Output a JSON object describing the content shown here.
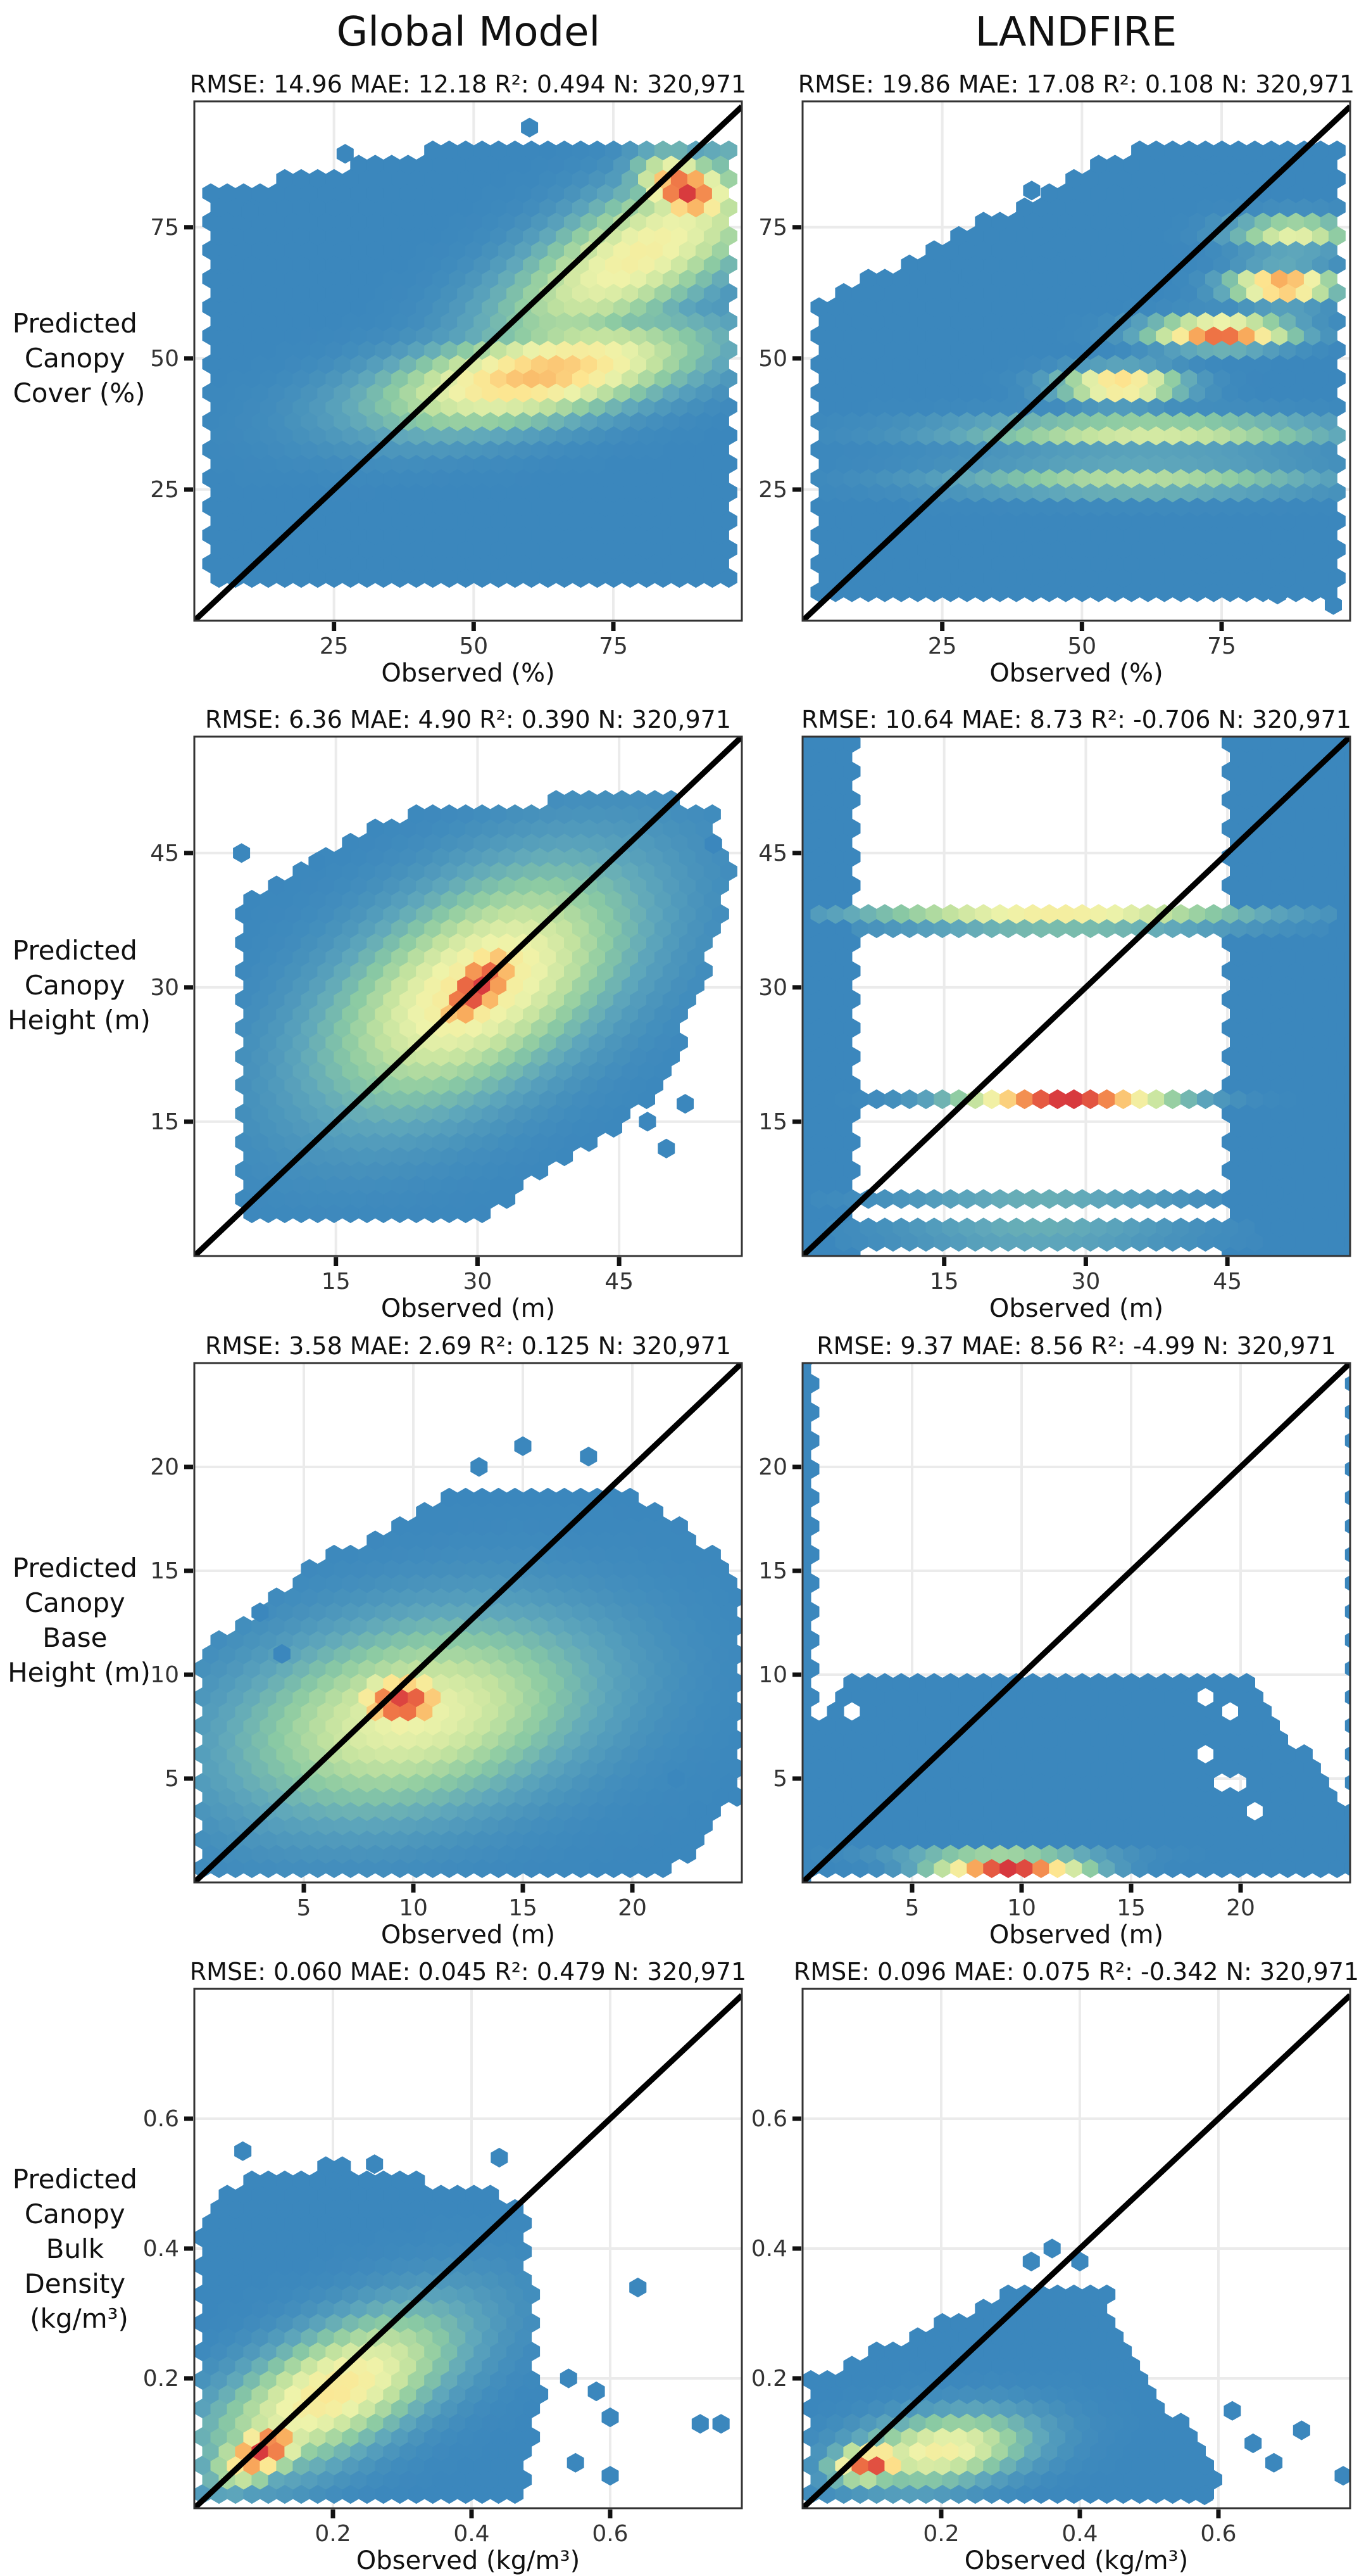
{
  "column_titles": [
    "Global Model",
    "LANDFIRE"
  ],
  "row_ylabels": [
    [
      "Predicted",
      "Canopy",
      "Cover (%)"
    ],
    [
      "Predicted",
      "Canopy",
      "Height (m)"
    ],
    [
      "Predicted",
      "Canopy",
      "Base",
      "Height (m)"
    ],
    [
      "Predicted",
      "Canopy",
      "Bulk",
      "Density",
      "(kg/m³)"
    ]
  ],
  "colors": {
    "low": "#3b87bd",
    "ramp": [
      "#3b87bd",
      "#5fa7bb",
      "#8bcaa3",
      "#c2e29f",
      "#eef3aa",
      "#fde590",
      "#f9ae5e",
      "#ee7245",
      "#d7373e"
    ],
    "grid": "#ebebeb",
    "identity_line": "#000000"
  },
  "chart_data": [
    {
      "type": "hexbin",
      "id": "cover-global",
      "title": "RMSE: 14.96 MAE: 12.18 R²: 0.494 N: 320,971",
      "xlabel": "Observed (%)",
      "ylabel": "Predicted Canopy Cover (%)",
      "xlim": [
        0,
        98
      ],
      "ylim": [
        0,
        99
      ],
      "xticks": [
        25,
        50,
        75
      ],
      "yticks": [
        25,
        50,
        75
      ],
      "xticklabels": [
        "25",
        "50",
        "75"
      ],
      "yticklabels": [
        "25",
        "50",
        "75"
      ],
      "envelope": [
        [
          2,
          6
        ],
        [
          96,
          6
        ],
        [
          96,
          92
        ],
        [
          55,
          92
        ],
        [
          2,
          82
        ]
      ],
      "clusters": [
        {
          "x": 88,
          "y": 82,
          "sx": 5,
          "sy": 4,
          "r": -0.3,
          "w": 1.0
        },
        {
          "x": 62,
          "y": 47,
          "sx": 16,
          "sy": 6,
          "r": 0.55,
          "w": 0.72
        },
        {
          "x": 80,
          "y": 70,
          "sx": 12,
          "sy": 10,
          "r": 0.85,
          "w": 0.55
        }
      ],
      "outliers": [
        [
          27,
          89
        ],
        [
          60,
          94
        ],
        [
          10,
          78
        ]
      ]
    },
    {
      "type": "hexbin",
      "id": "cover-landfire",
      "title": "RMSE: 19.86 MAE: 17.08 R²: 0.108 N: 320,971",
      "xlabel": "Observed (%)",
      "ylabel": "",
      "xlim": [
        0,
        98
      ],
      "ylim": [
        0,
        99
      ],
      "xticks": [
        25,
        50,
        75
      ],
      "yticks": [
        25,
        50,
        75
      ],
      "xticklabels": [
        "25",
        "50",
        "75"
      ],
      "yticklabels": [
        "25",
        "50",
        "75"
      ],
      "envelope": [
        [
          2,
          4
        ],
        [
          96,
          4
        ],
        [
          96,
          92
        ],
        [
          62,
          92
        ],
        [
          2,
          60
        ]
      ],
      "clusters": [
        {
          "x": 75,
          "y": 55,
          "sx": 8,
          "sy": 1.8,
          "r": 0,
          "w": 0.95
        },
        {
          "x": 86,
          "y": 64,
          "sx": 6,
          "sy": 2,
          "r": 0,
          "w": 0.9
        },
        {
          "x": 57,
          "y": 45,
          "sx": 7,
          "sy": 2,
          "r": 0,
          "w": 0.75
        },
        {
          "x": 62,
          "y": 36,
          "sx": 22,
          "sy": 2,
          "r": 0,
          "w": 0.45
        },
        {
          "x": 60,
          "y": 27,
          "sx": 22,
          "sy": 2,
          "r": 0,
          "w": 0.35
        },
        {
          "x": 88,
          "y": 74,
          "sx": 7,
          "sy": 2,
          "r": 0,
          "w": 0.5
        }
      ],
      "outliers": [
        [
          41,
          82
        ],
        [
          30,
          66
        ],
        [
          46,
          72
        ],
        [
          80,
          6
        ],
        [
          85,
          5
        ],
        [
          95,
          3
        ]
      ]
    },
    {
      "type": "hexbin",
      "id": "height-global",
      "title": "RMSE: 6.36 MAE: 4.90 R²: 0.390 N: 320,971",
      "xlabel": "Observed (m)",
      "ylabel": "Predicted Canopy Height (m)",
      "xlim": [
        0,
        58
      ],
      "ylim": [
        0,
        58
      ],
      "xticks": [
        15,
        30,
        45
      ],
      "yticks": [
        15,
        30,
        45
      ],
      "xticklabels": [
        "15",
        "30",
        "45"
      ],
      "yticklabels": [
        "15",
        "30",
        "45"
      ],
      "envelope": [
        [
          5,
          4
        ],
        [
          30,
          4
        ],
        [
          50,
          18
        ],
        [
          57,
          42
        ],
        [
          55,
          50
        ],
        [
          48,
          52
        ],
        [
          20,
          49
        ],
        [
          5,
          40
        ]
      ],
      "clusters": [
        {
          "x": 30,
          "y": 30,
          "sx": 3,
          "sy": 3.5,
          "r": 0.7,
          "w": 1.0
        },
        {
          "x": 30,
          "y": 30,
          "sx": 9,
          "sy": 8,
          "r": 0.55,
          "w": 0.6
        }
      ],
      "outliers": [
        [
          5,
          45
        ],
        [
          13,
          44
        ],
        [
          55,
          46
        ],
        [
          50,
          12
        ],
        [
          52,
          17
        ],
        [
          48,
          15
        ]
      ]
    },
    {
      "type": "hexbin",
      "id": "height-landfire",
      "title": "RMSE: 10.64 MAE: 8.73 R²: -0.706 N: 320,971",
      "xlabel": "Observed (m)",
      "ylabel": "",
      "xlim": [
        0,
        58
      ],
      "ylim": [
        0,
        58
      ],
      "xticks": [
        15,
        30,
        45
      ],
      "yticks": [
        15,
        30,
        45
      ],
      "xticklabels": [
        "15",
        "30",
        "45"
      ],
      "yticklabels": [
        "15",
        "30",
        "45"
      ],
      "bands": [
        {
          "y": 37.8,
          "x0": 1,
          "x1": 57,
          "cx": 27,
          "spread": 13,
          "peak": 0.55
        },
        {
          "y": 36.0,
          "x0": 6,
          "x1": 55,
          "cx": 28,
          "spread": 12,
          "peak": 0.2
        },
        {
          "y": 17.3,
          "x0": 4,
          "x1": 57,
          "cx": 28,
          "spread": 7,
          "peak": 1.0
        },
        {
          "y": 7.0,
          "x0": 1,
          "x1": 45,
          "cx": 25,
          "spread": 10,
          "peak": 0.15
        },
        {
          "y": 3.5,
          "x0": 3,
          "x1": 48,
          "cx": 25,
          "spread": 10,
          "peak": 0.15
        },
        {
          "y": 1.8,
          "x0": 3,
          "x1": 48,
          "cx": 25,
          "spread": 10,
          "peak": 0.12
        }
      ],
      "outliers": [
        [
          50,
          7
        ]
      ]
    },
    {
      "type": "hexbin",
      "id": "cbh-global",
      "title": "RMSE: 3.58 MAE: 2.69 R²: 0.125 N: 320,971",
      "xlabel": "Observed (m)",
      "ylabel": "Predicted Canopy Base Height (m)",
      "xlim": [
        0,
        25
      ],
      "ylim": [
        0,
        25
      ],
      "xticks": [
        5,
        10,
        15,
        20
      ],
      "yticks": [
        5,
        10,
        15,
        20
      ],
      "xticklabels": [
        "5",
        "10",
        "15",
        "20"
      ],
      "yticklabels": [
        "5",
        "10",
        "15",
        "20"
      ],
      "envelope": [
        [
          0.3,
          0.5
        ],
        [
          22,
          0.5
        ],
        [
          24.8,
          4
        ],
        [
          24.8,
          15
        ],
        [
          20,
          19
        ],
        [
          12,
          19
        ],
        [
          5,
          15
        ],
        [
          0.3,
          11
        ]
      ],
      "clusters": [
        {
          "x": 9.5,
          "y": 8.7,
          "sx": 1.6,
          "sy": 1.0,
          "r": 0.1,
          "w": 1.0
        },
        {
          "x": 10,
          "y": 8,
          "sx": 5,
          "sy": 3,
          "r": 0.3,
          "w": 0.5
        }
      ],
      "outliers": [
        [
          3,
          13
        ],
        [
          4,
          11
        ],
        [
          22,
          5
        ],
        [
          23,
          3.5
        ],
        [
          13,
          20
        ],
        [
          15,
          21
        ],
        [
          18,
          20.5
        ]
      ]
    },
    {
      "type": "hexbin",
      "id": "cbh-landfire",
      "title": "RMSE: 9.37 MAE: 8.56 R²: -4.99 N: 320,971",
      "xlabel": "Observed (m)",
      "ylabel": "",
      "xlim": [
        0,
        25
      ],
      "ylim": [
        0,
        25
      ],
      "xticks": [
        5,
        10,
        15,
        20
      ],
      "yticks": [
        5,
        10,
        15,
        20
      ],
      "xticklabels": [
        "5",
        "10",
        "15",
        "20"
      ],
      "yticklabels": [
        "5",
        "10",
        "15",
        "20"
      ],
      "envelope": [
        [
          0.3,
          0.3
        ],
        [
          24.8,
          0.3
        ],
        [
          24.8,
          3
        ],
        [
          20.5,
          10.2
        ],
        [
          2,
          10.2
        ],
        [
          0.3,
          7
        ]
      ],
      "holes": [
        [
          18.5,
          9
        ],
        [
          19.5,
          8
        ],
        [
          18.5,
          6
        ],
        [
          19.5,
          5
        ],
        [
          20.5,
          3.5
        ],
        [
          2,
          8
        ]
      ],
      "bands": [
        {
          "y": 0.7,
          "x0": 0.5,
          "x1": 24.8,
          "cx": 9.5,
          "spread": 2.2,
          "peak": 1.0
        },
        {
          "y": 1.3,
          "x0": 0.5,
          "x1": 24.8,
          "cx": 9,
          "spread": 3,
          "peak": 0.3
        }
      ],
      "outliers": []
    },
    {
      "type": "hexbin",
      "id": "cbd-global",
      "title": "RMSE: 0.060 MAE: 0.045 R²: 0.479 N: 320,971",
      "xlabel": "Observed (kg/m³)",
      "ylabel": "Predicted Canopy Bulk Density (kg/m³)",
      "xlim": [
        0,
        0.79
      ],
      "ylim": [
        0,
        0.8
      ],
      "xticks": [
        0.2,
        0.4,
        0.6
      ],
      "yticks": [
        0.2,
        0.4,
        0.6
      ],
      "xticklabels": [
        "0.2",
        "0.4",
        "0.6"
      ],
      "yticklabels": [
        "0.2",
        "0.4",
        "0.6"
      ],
      "envelope": [
        [
          0.005,
          0.01
        ],
        [
          0.47,
          0.01
        ],
        [
          0.5,
          0.15
        ],
        [
          0.48,
          0.47
        ],
        [
          0.36,
          0.5
        ],
        [
          0.2,
          0.53
        ],
        [
          0.04,
          0.5
        ],
        [
          0.005,
          0.43
        ]
      ],
      "clusters": [
        {
          "x": 0.1,
          "y": 0.09,
          "sx": 0.035,
          "sy": 0.03,
          "r": 0.6,
          "w": 1.0
        },
        {
          "x": 0.2,
          "y": 0.18,
          "sx": 0.09,
          "sy": 0.07,
          "r": 0.7,
          "w": 0.6
        }
      ],
      "outliers": [
        [
          0.07,
          0.55
        ],
        [
          0.26,
          0.53
        ],
        [
          0.44,
          0.54
        ],
        [
          0.58,
          0.18
        ],
        [
          0.6,
          0.14
        ],
        [
          0.64,
          0.34
        ],
        [
          0.73,
          0.13
        ],
        [
          0.76,
          0.13
        ],
        [
          0.55,
          0.07
        ],
        [
          0.6,
          0.05
        ],
        [
          0.54,
          0.2
        ]
      ]
    },
    {
      "type": "hexbin",
      "id": "cbd-landfire",
      "title": "RMSE: 0.096 MAE: 0.075 R²: -0.342 N: 320,971",
      "xlabel": "Observed (kg/m³)",
      "ylabel": "",
      "xlim": [
        0,
        0.79
      ],
      "ylim": [
        0,
        0.8
      ],
      "xticks": [
        0.2,
        0.4,
        0.6
      ],
      "yticks": [
        0.2,
        0.4,
        0.6
      ],
      "xticklabels": [
        "0.2",
        "0.4",
        "0.6"
      ],
      "yticklabels": [
        "0.2",
        "0.4",
        "0.6"
      ],
      "envelope": [
        [
          0.005,
          0.01
        ],
        [
          0.6,
          0.01
        ],
        [
          0.6,
          0.06
        ],
        [
          0.5,
          0.2
        ],
        [
          0.44,
          0.33
        ],
        [
          0.3,
          0.34
        ],
        [
          0.15,
          0.26
        ],
        [
          0.005,
          0.2
        ]
      ],
      "clusters": [
        {
          "x": 0.1,
          "y": 0.07,
          "sx": 0.035,
          "sy": 0.018,
          "r": 0.2,
          "w": 1.0
        },
        {
          "x": 0.2,
          "y": 0.09,
          "sx": 0.08,
          "sy": 0.035,
          "r": 0.3,
          "w": 0.55
        }
      ],
      "outliers": [
        [
          0.33,
          0.38
        ],
        [
          0.36,
          0.4
        ],
        [
          0.4,
          0.38
        ],
        [
          0.62,
          0.15
        ],
        [
          0.65,
          0.1
        ],
        [
          0.68,
          0.07
        ],
        [
          0.72,
          0.12
        ],
        [
          0.78,
          0.05
        ],
        [
          0.58,
          0.02
        ]
      ]
    }
  ]
}
